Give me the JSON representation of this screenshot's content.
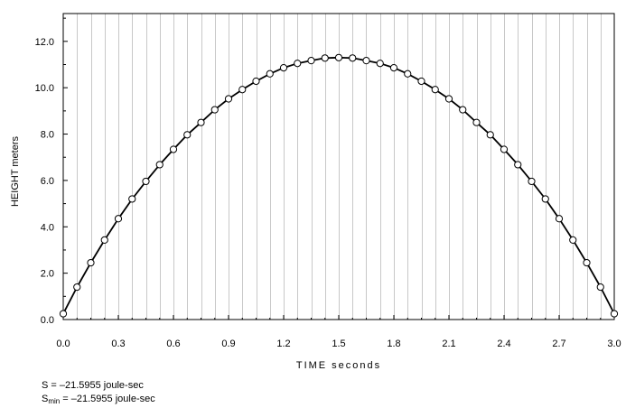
{
  "chart_data": {
    "type": "line",
    "xlabel": "TIME seconds",
    "ylabel": "HEIGHT meters",
    "xlim": [
      0,
      3.0
    ],
    "ylim": [
      0,
      13.2
    ],
    "x_ticks": [
      "0.0",
      "0.3",
      "0.6",
      "0.9",
      "1.2",
      "1.5",
      "1.8",
      "2.1",
      "2.4",
      "2.7",
      "3.0"
    ],
    "y_ticks": [
      "0.0",
      "2.0",
      "4.0",
      "6.0",
      "8.0",
      "10.0",
      "12.0"
    ],
    "grid": "vertical",
    "series": [
      {
        "markers": "open-circle",
        "color": "#000000",
        "x": [
          0.0,
          0.075,
          0.15,
          0.225,
          0.3,
          0.375,
          0.45,
          0.525,
          0.6,
          0.675,
          0.75,
          0.825,
          0.9,
          0.975,
          1.05,
          1.125,
          1.2,
          1.275,
          1.35,
          1.425,
          1.5,
          1.575,
          1.65,
          1.725,
          1.8,
          1.875,
          1.95,
          2.025,
          2.1,
          2.175,
          2.25,
          2.325,
          2.4,
          2.475,
          2.55,
          2.625,
          2.7,
          2.775,
          2.85,
          2.925,
          3.0
        ],
        "y": [
          0.25,
          1.4,
          2.45,
          3.43,
          4.35,
          5.2,
          5.96,
          6.68,
          7.34,
          7.97,
          8.5,
          9.05,
          9.52,
          9.92,
          10.28,
          10.6,
          10.86,
          11.05,
          11.17,
          11.28,
          11.3,
          11.28,
          11.17,
          11.05,
          10.86,
          10.6,
          10.28,
          9.92,
          9.52,
          9.05,
          8.5,
          7.97,
          7.34,
          6.68,
          5.96,
          5.2,
          4.35,
          3.43,
          2.45,
          1.4,
          0.25
        ]
      }
    ]
  },
  "annotations": {
    "s_line": "S = –21.5955 joule-sec",
    "smin_prefix": "S",
    "smin_sub": "min",
    "smin_value": " = –21.5955 joule-sec"
  }
}
